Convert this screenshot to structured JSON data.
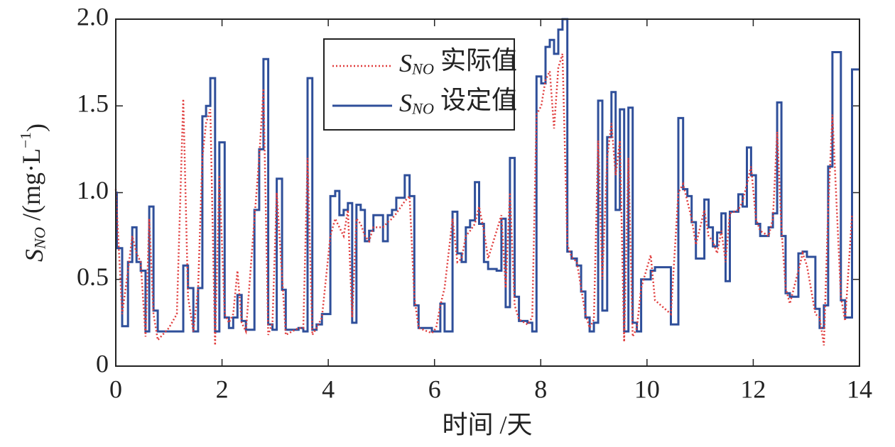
{
  "chart_data": {
    "type": "step",
    "xlabel": "时间 /天",
    "ylabel": "SNO /(mg·L−1)",
    "xlim": [
      0,
      14
    ],
    "ylim": [
      0,
      2.0
    ],
    "xticks": [
      0,
      2,
      4,
      6,
      8,
      10,
      12,
      14
    ],
    "yticks": [
      0,
      0.5,
      {
        "value": 1.0,
        "label": "1.0"
      },
      1.5,
      {
        "value": 2.0,
        "label": "2.0"
      }
    ],
    "legend": "upper center",
    "x": [
      0,
      0.02,
      0.12,
      0.23,
      0.31,
      0.39,
      0.47,
      0.56,
      0.63,
      0.71,
      0.79,
      1.0,
      1.15,
      1.27,
      1.36,
      1.46,
      1.55,
      1.63,
      1.7,
      1.78,
      1.87,
      1.95,
      2.05,
      2.13,
      2.21,
      2.29,
      2.37,
      2.45,
      2.61,
      2.7,
      2.78,
      2.87,
      2.95,
      3.03,
      3.13,
      3.2,
      3.44,
      3.53,
      3.61,
      3.7,
      3.78,
      3.88,
      4.04,
      4.13,
      4.21,
      4.29,
      4.37,
      4.45,
      4.53,
      4.61,
      4.69,
      4.77,
      4.85,
      5.03,
      5.12,
      5.2,
      5.28,
      5.44,
      5.53,
      5.62,
      5.7,
      5.95,
      6.03,
      6.11,
      6.19,
      6.34,
      6.43,
      6.51,
      6.59,
      6.67,
      6.76,
      6.84,
      6.93,
      7.01,
      7.17,
      7.26,
      7.34,
      7.42,
      7.51,
      7.59,
      7.75,
      7.84,
      7.92,
      8.01,
      8.09,
      8.17,
      8.25,
      8.33,
      8.41,
      8.5,
      8.58,
      8.68,
      8.76,
      8.84,
      8.92,
      9.0,
      9.08,
      9.16,
      9.25,
      9.33,
      9.41,
      9.49,
      9.57,
      9.65,
      9.73,
      9.81,
      9.89,
      10.07,
      10.15,
      10.45,
      10.59,
      10.68,
      10.76,
      10.84,
      10.92,
      11.08,
      11.16,
      11.24,
      11.32,
      11.4,
      11.48,
      11.56,
      11.72,
      11.8,
      11.88,
      11.96,
      12.05,
      12.13,
      12.29,
      12.37,
      12.45,
      12.53,
      12.61,
      12.69,
      12.85,
      12.93,
      13.01,
      13.17,
      13.25,
      13.33,
      13.41,
      13.49,
      13.65,
      13.73,
      13.86
    ],
    "series": [
      {
        "name": "SNO 实际值",
        "color": "#e03c3c",
        "style": "dotted",
        "values": [
          1.02,
          0.9,
          0.3,
          0.55,
          0.75,
          0.65,
          0.6,
          0.17,
          0.85,
          0.3,
          0.15,
          0.22,
          0.3,
          1.54,
          0.4,
          0.2,
          0.45,
          1.2,
          1.4,
          1.48,
          0.12,
          1.1,
          0.3,
          0.25,
          0.3,
          0.55,
          0.25,
          0.2,
          0.85,
          1.2,
          1.6,
          0.18,
          0.25,
          1.0,
          0.52,
          0.18,
          0.22,
          0.22,
          1.2,
          0.18,
          0.22,
          0.28,
          0.75,
          0.85,
          0.8,
          0.75,
          0.9,
          0.28,
          0.85,
          0.82,
          0.75,
          0.72,
          0.8,
          0.8,
          0.83,
          0.85,
          0.88,
          0.95,
          0.98,
          0.4,
          0.22,
          0.19,
          0.22,
          0.35,
          0.45,
          0.85,
          0.6,
          0.62,
          0.75,
          0.78,
          0.82,
          0.92,
          0.78,
          0.62,
          0.78,
          0.87,
          0.45,
          1.0,
          0.35,
          0.27,
          0.24,
          0.28,
          1.45,
          1.5,
          1.65,
          1.7,
          1.37,
          1.72,
          1.8,
          0.7,
          0.63,
          0.6,
          0.45,
          0.3,
          0.22,
          0.27,
          1.3,
          0.5,
          1.2,
          1.4,
          1.1,
          1.3,
          0.14,
          1.2,
          0.17,
          0.22,
          0.45,
          0.64,
          0.38,
          0.3,
          1.0,
          1.05,
          0.95,
          0.85,
          0.7,
          0.9,
          0.75,
          0.72,
          0.65,
          0.78,
          0.6,
          0.88,
          0.9,
          0.95,
          1.05,
          1.15,
          0.85,
          0.78,
          0.75,
          0.85,
          1.35,
          0.8,
          0.45,
          0.36,
          0.55,
          0.65,
          0.58,
          0.3,
          0.28,
          0.12,
          0.9,
          1.45,
          0.4,
          0.26,
          0.87
        ]
      },
      {
        "name": "SNO 设定值",
        "color": "#2f4f9a",
        "style": "step",
        "values": [
          1.0,
          0.68,
          0.23,
          0.6,
          0.8,
          0.6,
          0.55,
          0.2,
          0.92,
          0.32,
          0.2,
          0.2,
          0.2,
          0.58,
          0.45,
          0.2,
          0.45,
          1.44,
          1.5,
          1.66,
          0.2,
          1.29,
          0.28,
          0.22,
          0.28,
          0.41,
          0.26,
          0.21,
          0.9,
          1.25,
          1.77,
          0.24,
          0.21,
          1.08,
          0.44,
          0.21,
          0.22,
          0.2,
          1.66,
          0.21,
          0.24,
          0.3,
          0.98,
          1.01,
          0.87,
          0.9,
          0.94,
          0.25,
          0.93,
          0.9,
          0.72,
          0.78,
          0.87,
          0.72,
          0.87,
          0.9,
          0.97,
          1.1,
          0.98,
          0.35,
          0.22,
          0.2,
          0.2,
          0.36,
          0.2,
          0.89,
          0.65,
          0.6,
          0.8,
          0.84,
          1.06,
          0.82,
          0.6,
          0.56,
          0.55,
          0.85,
          0.34,
          1.2,
          0.4,
          0.26,
          0.25,
          0.2,
          1.67,
          1.63,
          1.84,
          1.88,
          1.8,
          1.94,
          2.0,
          0.66,
          0.62,
          0.58,
          0.43,
          0.28,
          0.2,
          0.25,
          1.53,
          0.32,
          1.32,
          1.58,
          0.9,
          1.48,
          0.2,
          1.49,
          0.25,
          0.2,
          0.5,
          0.55,
          0.57,
          0.24,
          1.43,
          1.02,
          0.98,
          0.83,
          0.62,
          0.96,
          0.8,
          0.69,
          0.77,
          0.88,
          0.49,
          0.89,
          0.99,
          0.92,
          1.26,
          1.1,
          0.82,
          0.75,
          0.8,
          0.88,
          1.52,
          0.75,
          0.42,
          0.4,
          0.65,
          0.66,
          0.63,
          0.33,
          0.22,
          0.35,
          1.15,
          1.81,
          0.38,
          0.28,
          1.71
        ]
      }
    ]
  }
}
